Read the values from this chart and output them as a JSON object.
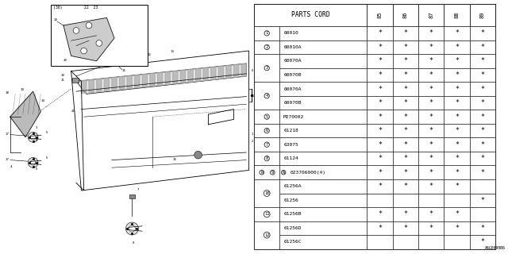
{
  "bg_color": "#ffffff",
  "table_header": "PARTS CORD",
  "year_cols": [
    "85",
    "86",
    "87",
    "88",
    "89"
  ],
  "rows": [
    {
      "ref": "1",
      "part": "60010",
      "marks": [
        1,
        1,
        1,
        1,
        1
      ],
      "span": 1
    },
    {
      "ref": "2",
      "part": "60010A",
      "marks": [
        1,
        1,
        1,
        1,
        1
      ],
      "span": 1
    },
    {
      "ref": "3",
      "part": "60070A",
      "marks": [
        1,
        1,
        1,
        1,
        1
      ],
      "span": 2
    },
    {
      "ref": "",
      "part": "60070B",
      "marks": [
        1,
        1,
        1,
        1,
        1
      ],
      "span": 0
    },
    {
      "ref": "4",
      "part": "60070A",
      "marks": [
        1,
        1,
        1,
        1,
        1
      ],
      "span": 2
    },
    {
      "ref": "",
      "part": "60070B",
      "marks": [
        1,
        1,
        1,
        1,
        1
      ],
      "span": 0
    },
    {
      "ref": "5",
      "part": "M270002",
      "marks": [
        1,
        1,
        1,
        1,
        1
      ],
      "span": 1
    },
    {
      "ref": "6",
      "part": "61218",
      "marks": [
        1,
        1,
        1,
        1,
        1
      ],
      "span": 1
    },
    {
      "ref": "7",
      "part": "63075",
      "marks": [
        1,
        1,
        1,
        1,
        1
      ],
      "span": 1
    },
    {
      "ref": "8",
      "part": "61124",
      "marks": [
        1,
        1,
        1,
        1,
        1
      ],
      "span": 1
    },
    {
      "ref": "9",
      "part": "N023706000(4)",
      "marks": [
        1,
        1,
        1,
        1,
        1
      ],
      "span": 1,
      "N_prefix": true
    },
    {
      "ref": "10",
      "part": "61256A",
      "marks": [
        1,
        1,
        1,
        1,
        0
      ],
      "span": 2
    },
    {
      "ref": "",
      "part": "61256",
      "marks": [
        0,
        0,
        0,
        0,
        1
      ],
      "span": 0
    },
    {
      "ref": "11",
      "part": "61256B",
      "marks": [
        1,
        1,
        1,
        1,
        0
      ],
      "span": 1
    },
    {
      "ref": "12",
      "part": "61256D",
      "marks": [
        1,
        1,
        1,
        1,
        1
      ],
      "span": 2
    },
    {
      "ref": "",
      "part": "61256C",
      "marks": [
        0,
        0,
        0,
        0,
        1
      ],
      "span": 0
    }
  ],
  "footer": "A6G0000B6"
}
